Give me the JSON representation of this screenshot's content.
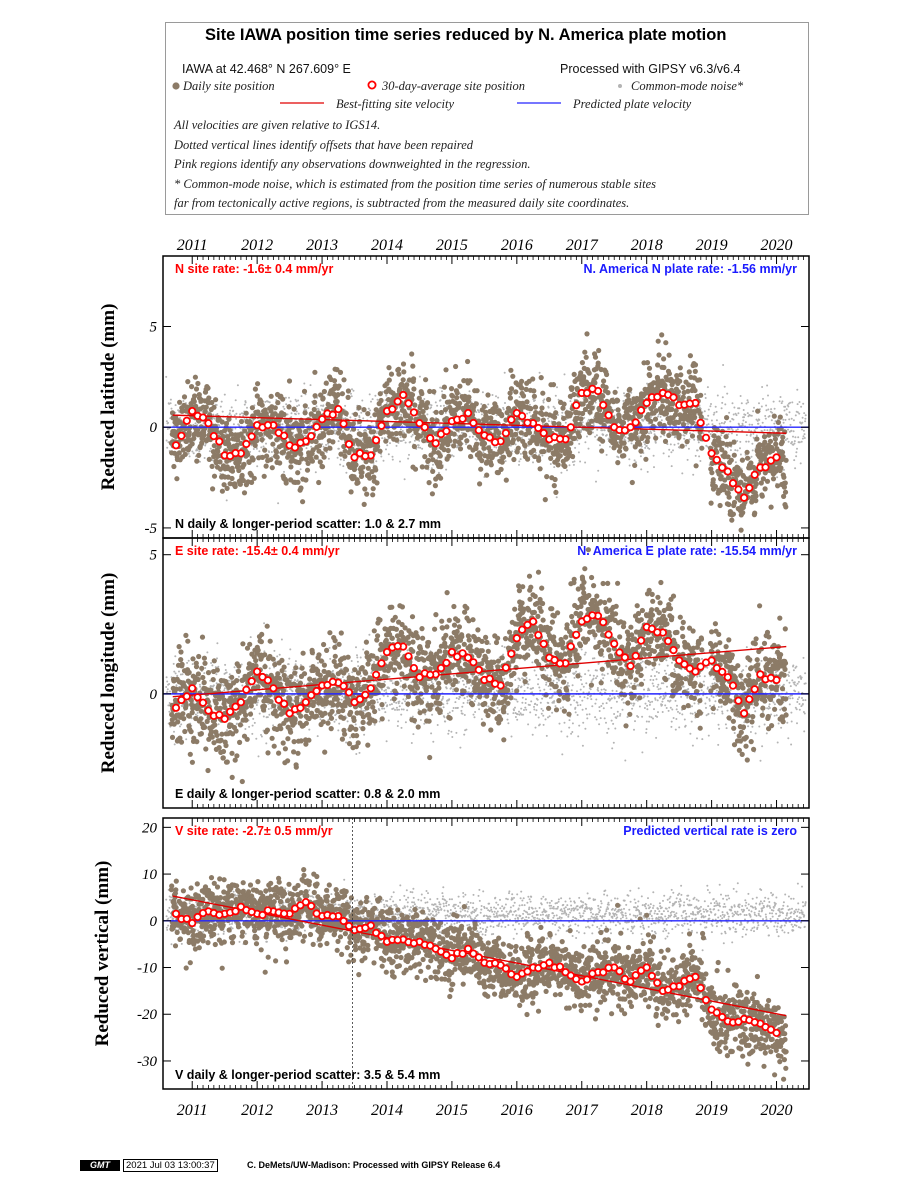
{
  "title": "Site IAWA position time series reduced by N. America plate motion",
  "site_line": "IAWA at 42.468° N 267.609° E",
  "processed_line": "Processed with GIPSY v6.3/v6.4",
  "legend": {
    "daily": "Daily site position",
    "avg": "30-day-average site position",
    "cmn": "Common-mode noise*",
    "best": "Best-fitting site velocity",
    "pred": "Predicted plate velocity"
  },
  "notes": [
    "All velocities are given relative to IGS14.",
    "Dotted vertical lines identify offsets that have been repaired",
    "Pink regions identify any observations downweighted in the regression.",
    "* Common-mode noise, which is estimated from the position time series of numerous stable sites",
    "far from tectonically active regions, is subtracted from the measured daily site coordinates."
  ],
  "colors": {
    "daily": "#8c7b67",
    "avg_edge": "#ff0000",
    "cmn": "#b4b4b4",
    "best": "#e00000",
    "pred": "#2424ff",
    "rate_red": "#ff0000",
    "rate_blue": "#1a1aff"
  },
  "footer": {
    "logo": "GMT",
    "date": "2021 Jul 03 13:00:37",
    "credit": "C. DeMets/UW-Madison: Processed with GIPSY Release 6.4"
  },
  "chart_data": [
    {
      "type": "scatter",
      "ylabel": "Reduced latitude (mm)",
      "site_rate": "N site rate:  -1.6± 0.4 mm/yr",
      "plate_rate": "N. America N plate rate: -1.56 mm/yr",
      "scatter_text": "N daily & longer-period scatter:   1.0 &   2.7 mm",
      "xlim": [
        2010.55,
        2020.5
      ],
      "ylim": [
        -5.5,
        8.5
      ],
      "yticks": [
        -5,
        0,
        5
      ],
      "xticks": [
        2011,
        2012,
        2013,
        2014,
        2015,
        2016,
        2017,
        2018,
        2019,
        2020
      ],
      "best_fit": {
        "x": [
          2010.7,
          2020.15
        ],
        "y": [
          0.6,
          -0.3
        ]
      },
      "predicted": {
        "y": 0
      },
      "avg_x": [
        2010.75,
        2011.0,
        2011.25,
        2011.5,
        2011.75,
        2012.0,
        2012.25,
        2012.5,
        2012.75,
        2013.0,
        2013.25,
        2013.5,
        2013.75,
        2014.0,
        2014.25,
        2014.5,
        2014.75,
        2015.0,
        2015.25,
        2015.5,
        2015.75,
        2016.0,
        2016.25,
        2016.5,
        2016.75,
        2017.0,
        2017.25,
        2017.5,
        2017.75,
        2018.0,
        2018.25,
        2018.5,
        2018.75,
        2019.0,
        2019.25,
        2019.5,
        2019.75,
        2020.0
      ],
      "avg_y": [
        -0.9,
        0.8,
        0.2,
        -1.4,
        -1.3,
        0.1,
        0.1,
        -0.9,
        -0.7,
        0.4,
        0.9,
        -1.5,
        -1.4,
        0.8,
        1.6,
        0.2,
        -0.8,
        0.3,
        0.7,
        -0.4,
        -0.7,
        0.7,
        0.2,
        -0.6,
        -0.6,
        1.7,
        1.8,
        0.0,
        0.0,
        1.2,
        1.7,
        1.1,
        1.2,
        -1.3,
        -2.2,
        -3.5,
        -2.0,
        -1.5
      ],
      "annual_amp": 0.9,
      "daily_sd": 1.0,
      "cmn_sd": 0.9,
      "cmn_center": 0
    },
    {
      "type": "scatter",
      "ylabel": "Reduced longitude (mm)",
      "site_rate": "E site rate:  -15.4± 0.4 mm/yr",
      "plate_rate": "N. America E plate rate: -15.54 mm/yr",
      "scatter_text": "E daily & longer-period scatter:   0.8 &   2.0 mm",
      "xlim": [
        2010.55,
        2020.5
      ],
      "ylim": [
        -4.1,
        5.6
      ],
      "yticks": [
        0,
        5
      ],
      "xticks": [
        2011,
        2012,
        2013,
        2014,
        2015,
        2016,
        2017,
        2018,
        2019,
        2020
      ],
      "best_fit": {
        "x": [
          2010.7,
          2020.15
        ],
        "y": [
          -0.1,
          1.7
        ]
      },
      "predicted": {
        "y": 0
      },
      "avg_x": [
        2010.75,
        2011.0,
        2011.25,
        2011.5,
        2011.75,
        2012.0,
        2012.25,
        2012.5,
        2012.75,
        2013.0,
        2013.25,
        2013.5,
        2013.75,
        2014.0,
        2014.25,
        2014.5,
        2014.75,
        2015.0,
        2015.25,
        2015.5,
        2015.75,
        2016.0,
        2016.25,
        2016.5,
        2016.75,
        2017.0,
        2017.25,
        2017.5,
        2017.75,
        2018.0,
        2018.25,
        2018.5,
        2018.75,
        2019.0,
        2019.25,
        2019.5,
        2019.75,
        2020.0
      ],
      "avg_y": [
        -0.5,
        0.2,
        -0.6,
        -0.9,
        -0.3,
        0.8,
        0.2,
        -0.7,
        -0.3,
        0.3,
        0.4,
        -0.3,
        0.2,
        1.5,
        1.7,
        0.6,
        0.7,
        1.5,
        1.3,
        0.5,
        0.3,
        2.0,
        2.6,
        1.3,
        1.1,
        2.6,
        2.8,
        1.8,
        1.0,
        2.4,
        2.2,
        1.2,
        0.8,
        1.2,
        0.6,
        -0.7,
        0.7,
        0.5
      ],
      "annual_amp": 0.6,
      "daily_sd": 0.8,
      "cmn_sd": 0.7,
      "cmn_center": 0
    },
    {
      "type": "scatter",
      "ylabel": "Reduced vertical (mm)",
      "site_rate": "V site rate:  -2.7± 0.5 mm/yr",
      "plate_rate": "Predicted vertical rate is zero",
      "scatter_text": "V daily & longer-period scatter:   3.5 &   5.4 mm",
      "xlim": [
        2010.55,
        2020.5
      ],
      "ylim": [
        -36,
        22
      ],
      "yticks": [
        -30,
        -20,
        -10,
        0,
        10,
        20
      ],
      "xticks": [
        2011,
        2012,
        2013,
        2014,
        2015,
        2016,
        2017,
        2018,
        2019,
        2020
      ],
      "offset_x": 2013.47,
      "best_fit": {
        "x": [
          2010.7,
          2020.15
        ],
        "y": [
          5.3,
          -20.3
        ]
      },
      "predicted": {
        "y": 0
      },
      "avg_x": [
        2010.75,
        2011.0,
        2011.25,
        2011.5,
        2011.75,
        2012.0,
        2012.25,
        2012.5,
        2012.75,
        2013.0,
        2013.25,
        2013.5,
        2013.75,
        2014.0,
        2014.25,
        2014.5,
        2014.75,
        2015.0,
        2015.25,
        2015.5,
        2015.75,
        2016.0,
        2016.25,
        2016.5,
        2016.75,
        2017.0,
        2017.25,
        2017.5,
        2017.75,
        2018.0,
        2018.25,
        2018.5,
        2018.75,
        2019.0,
        2019.25,
        2019.5,
        2019.75,
        2020.0
      ],
      "avg_y": [
        1.5,
        -0.5,
        2.0,
        1.5,
        3.0,
        1.5,
        2.0,
        1.5,
        4.0,
        1.0,
        1.0,
        -2.0,
        -1.0,
        -4.5,
        -4.0,
        -4.5,
        -6.0,
        -8.0,
        -6.0,
        -9.0,
        -9.5,
        -12.0,
        -10.0,
        -9.0,
        -11.0,
        -13.0,
        -11.0,
        -10.0,
        -13.0,
        -10.0,
        -15.0,
        -14.0,
        -12.0,
        -19.0,
        -21.5,
        -21.0,
        -22.0,
        -24.0
      ],
      "annual_amp": 2.5,
      "daily_sd": 3.5,
      "cmn_sd": 2.2,
      "cmn_center": 1.5
    }
  ]
}
